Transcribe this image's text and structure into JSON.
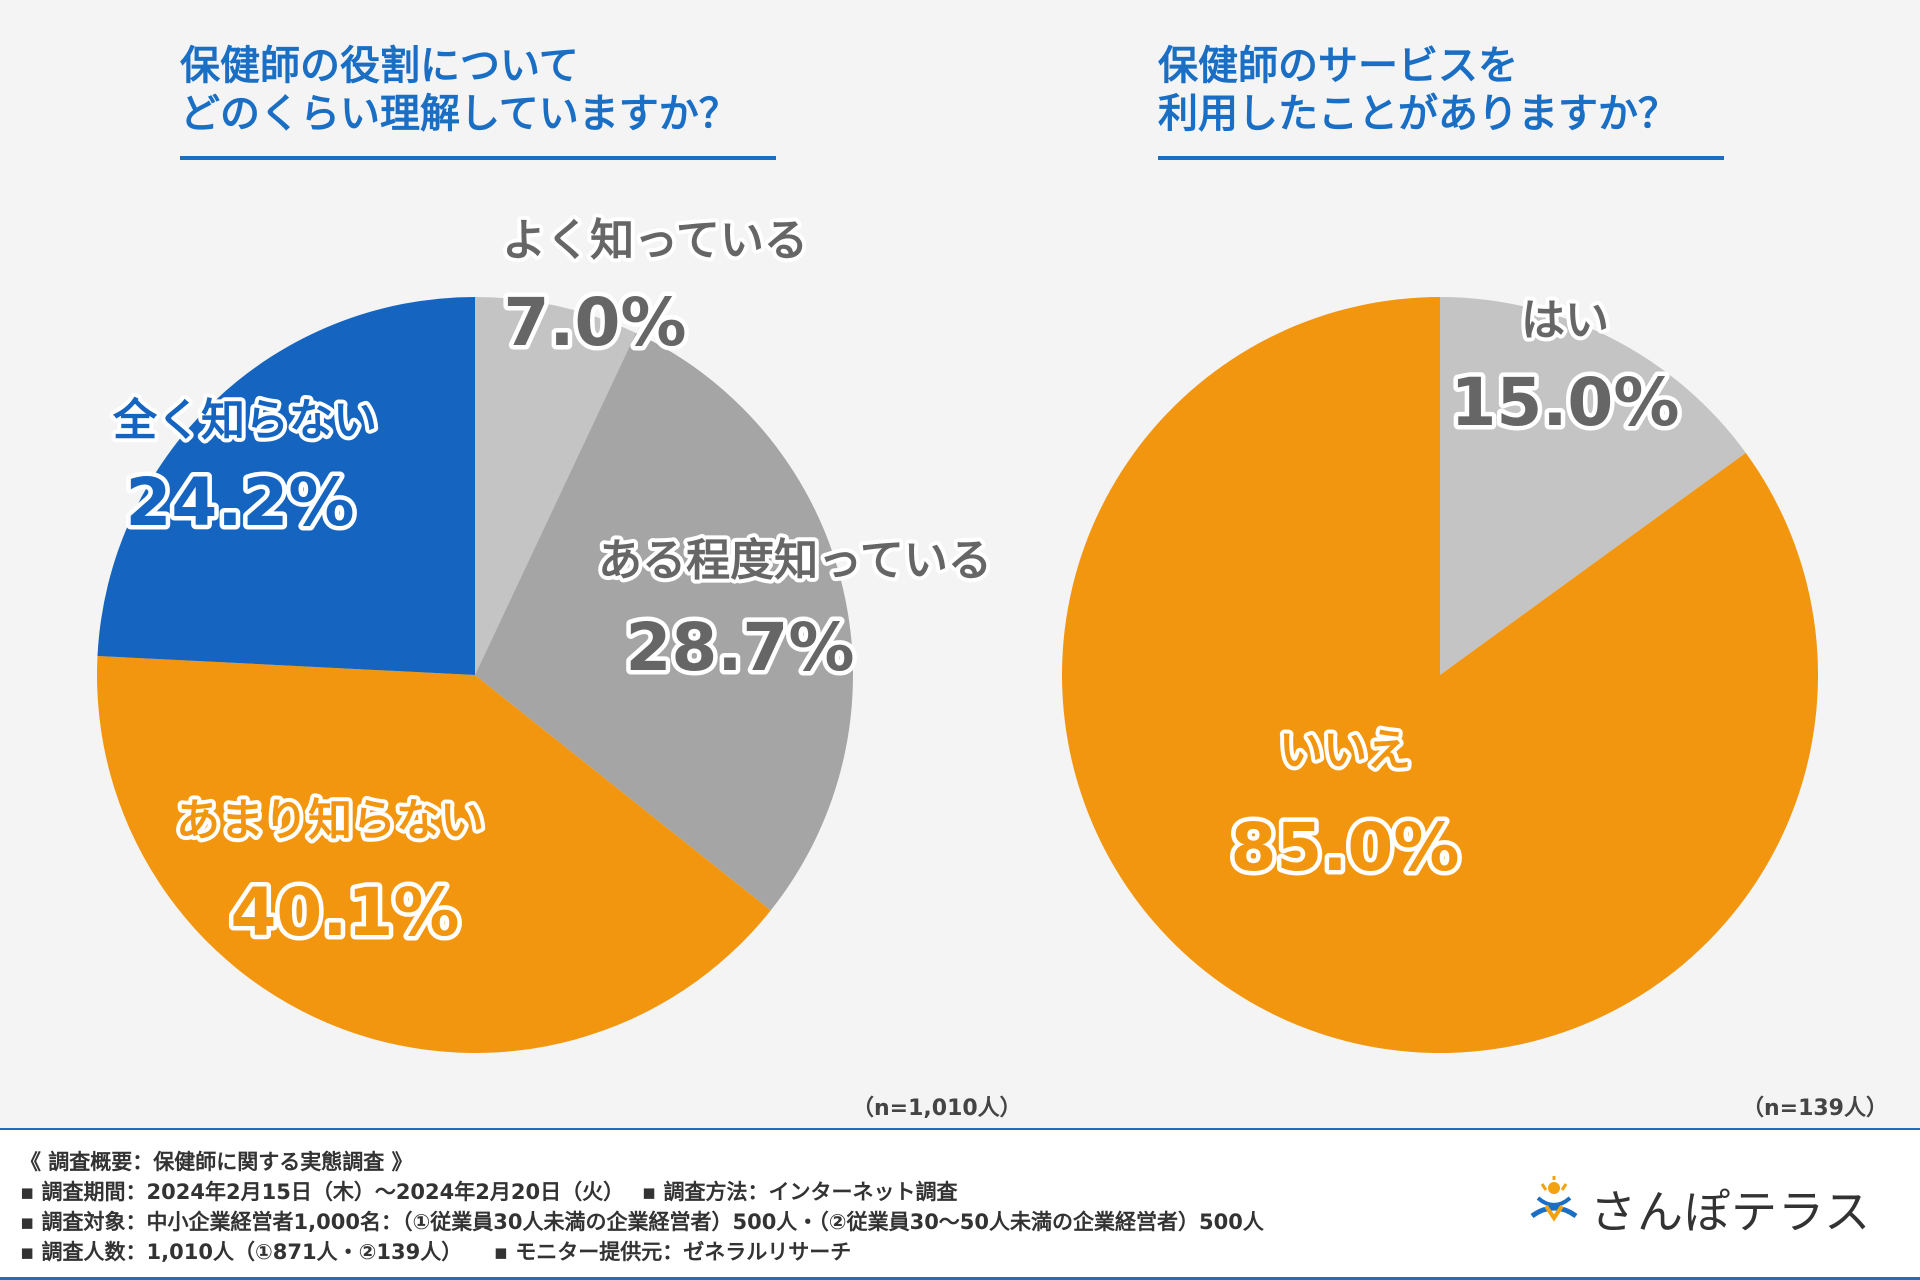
{
  "chart_data": [
    {
      "type": "pie",
      "title": "保健師の役割について\nどのくらい理解していますか？",
      "title_lines": [
        "保健師の役割について",
        "どのくらい理解していますか？"
      ],
      "start_angle_deg": 0,
      "direction": "clockwise",
      "slices": [
        {
          "label": "よく知っている",
          "value": 7.0,
          "value_text": "7.0%",
          "color": "#c4c4c4",
          "text_color": "#666666"
        },
        {
          "label": "ある程度知っている",
          "value": 28.7,
          "value_text": "28.7%",
          "color": "#a5a5a5",
          "text_color": "#666666"
        },
        {
          "label": "あまり知らない",
          "value": 40.1,
          "value_text": "40.1%",
          "color": "#f2960f",
          "text_color": "#f2960f"
        },
        {
          "label": "全く知らない",
          "value": 24.2,
          "value_text": "24.2%",
          "color": "#1565c0",
          "text_color": "#1565c0"
        }
      ],
      "sample": "（n=1,010人）"
    },
    {
      "type": "pie",
      "title": "保健師のサービスを\n利用したことがありますか？",
      "title_lines": [
        "保健師のサービスを",
        "利用したことがありますか？"
      ],
      "start_angle_deg": 0,
      "direction": "clockwise",
      "slices": [
        {
          "label": "はい",
          "value": 15.0,
          "value_text": "15.0%",
          "color": "#c4c4c4",
          "text_color": "#666666"
        },
        {
          "label": "いいえ",
          "value": 85.0,
          "value_text": "85.0%",
          "color": "#f2960f",
          "text_color": "#f2960f"
        }
      ],
      "sample": "（n=139人）"
    }
  ],
  "footer": {
    "heading": "《 調査概要：保健師に関する実態調査 》",
    "line1": "▪ 調査期間：2024年2月15日（木）～2024年2月20日（火）　 ▪ 調査方法：インターネット調査",
    "line2": "▪ 調査対象：中小企業経営者1,000名：（①従業員30人未満の企業経営者）500人・（②従業員30～50人未満の企業経営者）500人",
    "line3": "▪ 調査人数：1,010人（①871人・②139人）　　▪ モニター提供元：ゼネラルリサーチ"
  },
  "logo": {
    "name": "さんぽテラス",
    "icon": "sanpo-terrace-logo-icon"
  }
}
